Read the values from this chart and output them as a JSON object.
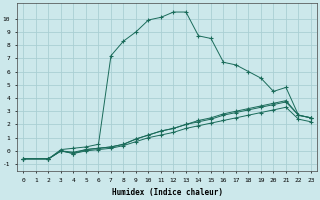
{
  "xlabel": "Humidex (Indice chaleur)",
  "background_color": "#cce8eb",
  "grid_color": "#aacfd4",
  "line_color": "#1a6b5a",
  "xlim": [
    -0.5,
    23.5
  ],
  "ylim": [
    -1.5,
    11.2
  ],
  "yticks": [
    -1,
    0,
    1,
    2,
    3,
    4,
    5,
    6,
    7,
    8,
    9,
    10
  ],
  "xticks": [
    0,
    1,
    2,
    3,
    4,
    5,
    6,
    7,
    8,
    9,
    10,
    11,
    12,
    13,
    14,
    15,
    16,
    17,
    18,
    19,
    20,
    21,
    22,
    23
  ],
  "series": [
    {
      "x": [
        0,
        2,
        3,
        4,
        5,
        6,
        7,
        8,
        9,
        10,
        11,
        12,
        13,
        14,
        15,
        16,
        17,
        18,
        19,
        20,
        21,
        22,
        23
      ],
      "y": [
        -0.6,
        -0.6,
        0.1,
        0.2,
        0.3,
        0.5,
        7.2,
        8.3,
        9.0,
        9.9,
        10.1,
        10.5,
        10.5,
        8.7,
        8.5,
        6.7,
        6.5,
        6.0,
        5.5,
        4.5,
        4.8,
        2.7,
        2.5
      ]
    },
    {
      "x": [
        0,
        2,
        3,
        4,
        5,
        6,
        7,
        8,
        9,
        10,
        11,
        12,
        13,
        14,
        15,
        16,
        17,
        18,
        19,
        20,
        21,
        22,
        23
      ],
      "y": [
        -0.6,
        -0.6,
        0.0,
        -0.1,
        0.1,
        0.2,
        0.3,
        0.5,
        0.9,
        1.2,
        1.5,
        1.7,
        2.0,
        2.2,
        2.4,
        2.7,
        2.9,
        3.1,
        3.3,
        3.5,
        3.7,
        2.7,
        2.5
      ]
    },
    {
      "x": [
        0,
        2,
        3,
        4,
        5,
        6,
        7,
        8,
        9,
        10,
        11,
        12,
        13,
        14,
        15,
        16,
        17,
        18,
        19,
        20,
        21,
        22,
        23
      ],
      "y": [
        -0.6,
        -0.6,
        0.0,
        -0.2,
        0.1,
        0.2,
        0.3,
        0.5,
        0.9,
        1.2,
        1.5,
        1.7,
        2.0,
        2.3,
        2.5,
        2.8,
        3.0,
        3.2,
        3.4,
        3.6,
        3.8,
        2.7,
        2.5
      ]
    },
    {
      "x": [
        0,
        2,
        3,
        4,
        5,
        6,
        7,
        8,
        9,
        10,
        11,
        12,
        13,
        14,
        15,
        16,
        17,
        18,
        19,
        20,
        21,
        22,
        23
      ],
      "y": [
        -0.6,
        -0.6,
        0.0,
        -0.2,
        0.0,
        0.1,
        0.2,
        0.4,
        0.7,
        1.0,
        1.2,
        1.4,
        1.7,
        1.9,
        2.1,
        2.3,
        2.5,
        2.7,
        2.9,
        3.1,
        3.3,
        2.4,
        2.2
      ]
    }
  ]
}
